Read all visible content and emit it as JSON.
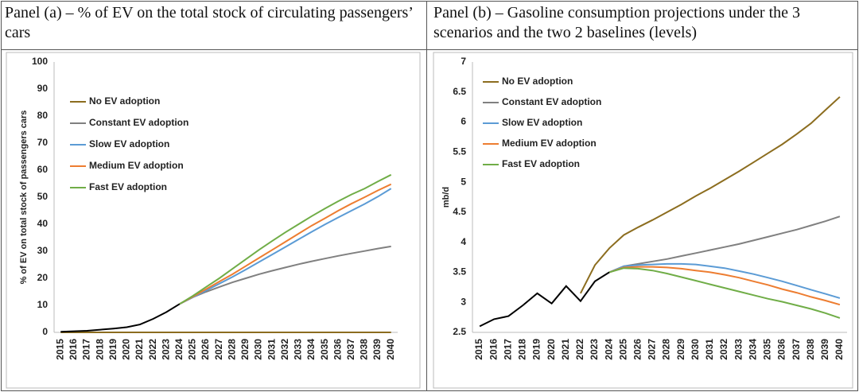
{
  "chart_data": [
    {
      "type": "line",
      "title": "Panel (a) – % of EV on the total stock of circulating passengers’ cars",
      "y_label": "% of EV on total stock of passengers cars",
      "categories": [
        "2015",
        "2016",
        "2017",
        "2018",
        "2019",
        "2020",
        "2021",
        "2022",
        "2023",
        "2024",
        "2025",
        "2026",
        "2027",
        "2028",
        "2029",
        "2030",
        "2031",
        "2032",
        "2033",
        "2034",
        "2035",
        "2036",
        "2037",
        "2038",
        "2039",
        "2040"
      ],
      "ylim": [
        0,
        100
      ],
      "yticks": [
        0,
        10,
        20,
        30,
        40,
        50,
        60,
        70,
        80,
        90,
        100
      ],
      "grid": false,
      "legend": "upper left",
      "series": [
        {
          "name": "No EV adoption",
          "color": "#8c6d1f",
          "values": [
            0,
            0,
            0,
            0,
            0,
            0,
            0,
            0,
            0,
            0,
            0,
            0,
            0,
            0,
            0,
            0,
            0,
            0,
            0,
            0,
            0,
            0,
            0,
            0,
            0,
            0
          ]
        },
        {
          "name": "Constant EV adoption",
          "color": "#808080",
          "values": [
            null,
            null,
            null,
            null,
            null,
            null,
            null,
            null,
            null,
            10.5,
            13,
            15,
            16.8,
            18.5,
            20,
            21.5,
            22.8,
            24,
            25.2,
            26.3,
            27.3,
            28.3,
            29.2,
            30.1,
            31,
            31.8
          ]
        },
        {
          "name": "Slow EV adoption",
          "color": "#5b9bd5",
          "values": [
            null,
            null,
            null,
            null,
            null,
            null,
            null,
            null,
            null,
            10.5,
            13,
            15.5,
            18,
            20.5,
            23.2,
            26,
            28.8,
            31.6,
            34.4,
            37.2,
            39.9,
            42.5,
            45,
            47.5,
            50.2,
            53.2
          ]
        },
        {
          "name": "Medium EV adoption",
          "color": "#ed7d31",
          "values": [
            null,
            null,
            null,
            null,
            null,
            null,
            null,
            null,
            null,
            10.5,
            13.2,
            16,
            18.8,
            21.5,
            24.5,
            27.5,
            30.5,
            33.5,
            36.5,
            39.5,
            42.2,
            45,
            47.6,
            50,
            52.5,
            54.8
          ]
        },
        {
          "name": "Fast EV adoption",
          "color": "#70ad47",
          "values": [
            null,
            null,
            null,
            null,
            null,
            null,
            null,
            null,
            null,
            10.5,
            13.5,
            16.8,
            20,
            23.5,
            27,
            30.5,
            33.8,
            37,
            40,
            43,
            45.8,
            48.5,
            51,
            53.2,
            55.8,
            58.3
          ]
        },
        {
          "color": "#000000",
          "values": [
            0.2,
            0.4,
            0.6,
            1.0,
            1.4,
            1.9,
            2.9,
            5,
            7.5,
            10.5,
            null,
            null,
            null,
            null,
            null,
            null,
            null,
            null,
            null,
            null,
            null,
            null,
            null,
            null,
            null,
            null
          ]
        }
      ]
    },
    {
      "type": "line",
      "title": "Panel (b) – Gasoline consumption projections under the 3 scenarios and the two 2 baselines (levels)",
      "y_label": "mb/d",
      "categories": [
        "2015",
        "2016",
        "2017",
        "2018",
        "2019",
        "2020",
        "2021",
        "2022",
        "2023",
        "2024",
        "2025",
        "2026",
        "2027",
        "2028",
        "2029",
        "2030",
        "2031",
        "2032",
        "2033",
        "2034",
        "2035",
        "2036",
        "2037",
        "2038",
        "2039",
        "2040"
      ],
      "ylim": [
        2.5,
        7
      ],
      "yticks": [
        2.5,
        3,
        3.5,
        4,
        4.5,
        5,
        5.5,
        6,
        6.5,
        7
      ],
      "grid": false,
      "legend": "upper left",
      "series": [
        {
          "name": "No EV adoption",
          "color": "#8c6d1f",
          "values": [
            null,
            null,
            null,
            null,
            null,
            null,
            null,
            3.15,
            3.62,
            3.9,
            4.12,
            4.25,
            4.37,
            4.5,
            4.63,
            4.77,
            4.9,
            5.04,
            5.18,
            5.33,
            5.48,
            5.63,
            5.8,
            5.98,
            6.2,
            6.42
          ]
        },
        {
          "name": "Constant EV adoption",
          "color": "#808080",
          "values": [
            null,
            null,
            null,
            null,
            null,
            null,
            null,
            null,
            null,
            3.5,
            3.6,
            3.64,
            3.68,
            3.72,
            3.77,
            3.82,
            3.87,
            3.92,
            3.97,
            4.03,
            4.09,
            4.15,
            4.21,
            4.28,
            4.35,
            4.43
          ]
        },
        {
          "name": "Slow EV adoption",
          "color": "#5b9bd5",
          "values": [
            null,
            null,
            null,
            null,
            null,
            null,
            null,
            null,
            null,
            3.5,
            3.6,
            3.62,
            3.63,
            3.64,
            3.64,
            3.63,
            3.6,
            3.57,
            3.52,
            3.47,
            3.41,
            3.35,
            3.28,
            3.21,
            3.14,
            3.07
          ]
        },
        {
          "name": "Medium EV adoption",
          "color": "#ed7d31",
          "values": [
            null,
            null,
            null,
            null,
            null,
            null,
            null,
            null,
            null,
            3.5,
            3.58,
            3.59,
            3.59,
            3.58,
            3.56,
            3.53,
            3.5,
            3.46,
            3.41,
            3.35,
            3.29,
            3.22,
            3.16,
            3.09,
            3.03,
            2.96
          ]
        },
        {
          "name": "Fast EV adoption",
          "color": "#70ad47",
          "values": [
            null,
            null,
            null,
            null,
            null,
            null,
            null,
            null,
            null,
            3.5,
            3.57,
            3.56,
            3.53,
            3.48,
            3.42,
            3.36,
            3.3,
            3.24,
            3.18,
            3.12,
            3.06,
            3.01,
            2.95,
            2.89,
            2.82,
            2.74
          ]
        },
        {
          "color": "#000000",
          "values": [
            2.6,
            2.72,
            2.77,
            2.95,
            3.15,
            2.98,
            3.27,
            3.02,
            3.35,
            3.5,
            null,
            null,
            null,
            null,
            null,
            null,
            null,
            null,
            null,
            null,
            null,
            null,
            null,
            null,
            null,
            null
          ]
        }
      ]
    }
  ]
}
